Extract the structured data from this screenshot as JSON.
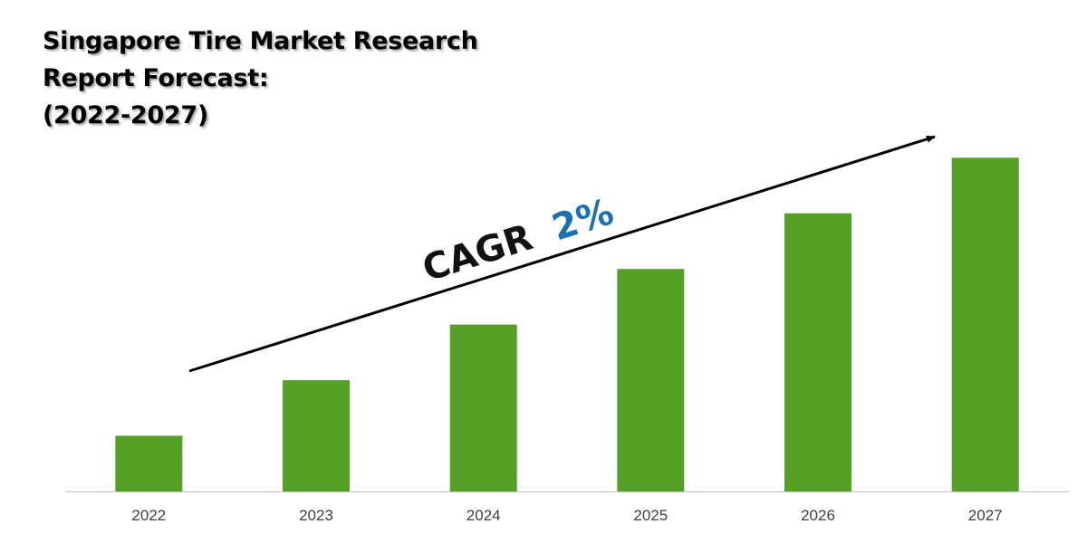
{
  "title": {
    "line1": "Singapore Tire Market Research",
    "line2": "Report Forecast:",
    "line3": "(2022-2027)"
  },
  "annotation": {
    "prefix": "CAGR",
    "value": "2%",
    "prefix_color": "#111111",
    "value_color": "#1b6fb3"
  },
  "colors": {
    "bar": "#55a125",
    "axis": "#bfbfbf",
    "arrow": "#000000"
  },
  "chart_data": {
    "type": "bar",
    "title": "Singapore Tire Market Research Report Forecast: (2022-2027)",
    "categories": [
      "2022",
      "2023",
      "2024",
      "2025",
      "2026",
      "2027"
    ],
    "values": [
      1.0,
      2.0,
      3.0,
      4.0,
      5.0,
      6.0
    ],
    "ylim": [
      0,
      6.2
    ],
    "xlabel": "",
    "ylabel": "",
    "grid": false,
    "legend": "none",
    "y_axis_visible": false,
    "annotation": "CAGR 2%"
  }
}
